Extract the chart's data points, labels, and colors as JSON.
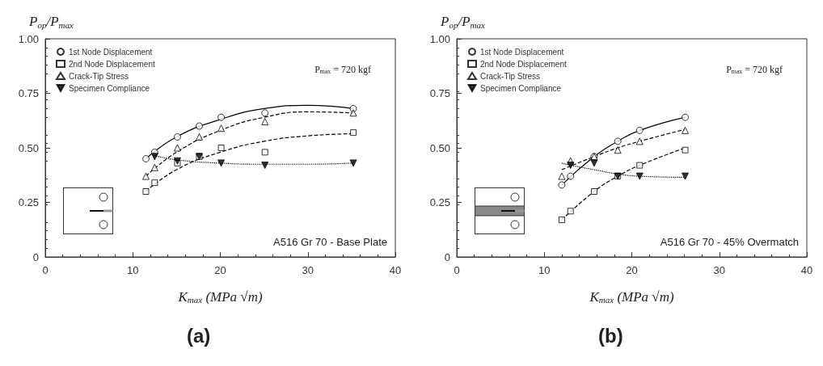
{
  "chart_data": [
    {
      "type": "scatter",
      "xlabel": "K$_{max}$ (MPa √m)",
      "ylabel": "P$_{op}$/P$_{max}$",
      "xlim": [
        0,
        40
      ],
      "xticks": [
        0,
        10,
        20,
        30,
        40
      ],
      "ylim": [
        0,
        1
      ],
      "yticks": [
        {
          "value": 0,
          "label": "0"
        },
        {
          "value": 0.25,
          "label": "0.25"
        },
        {
          "value": 0.5,
          "label": "0.50"
        },
        {
          "value": 0.75,
          "label": "0.75"
        },
        {
          "value": 1,
          "label": "1.00"
        }
      ],
      "legend": "top left",
      "grid": false,
      "annotations": [
        "P$_{max}$ = 720 kgf",
        "A516 Gr 70 - Base Plate",
        "(a)"
      ],
      "series": [
        {
          "name": "1st Node Displacement",
          "color": "#000000",
          "marker": "circle",
          "x": [
            11.5,
            12.5,
            15.1,
            17.6,
            20.1,
            25.1,
            35.2
          ],
          "values": [
            0.45,
            0.48,
            0.55,
            0.6,
            0.64,
            0.66,
            0.68
          ]
        },
        {
          "name": "2nd Node Displacement",
          "color": "#000000",
          "marker": "square",
          "x": [
            11.5,
            12.5,
            15.1,
            17.6,
            20.1,
            25.1,
            35.2
          ],
          "values": [
            0.3,
            0.34,
            0.43,
            0.46,
            0.5,
            0.48,
            0.57
          ]
        },
        {
          "name": "Crack-Tip Stress",
          "color": "#000000",
          "marker": "triangle",
          "x": [
            11.5,
            12.5,
            15.1,
            17.6,
            20.1,
            25.1,
            35.2
          ],
          "values": [
            0.37,
            0.41,
            0.5,
            0.55,
            0.59,
            0.62,
            0.66
          ]
        },
        {
          "name": "Specimen Compliance",
          "color": "#000000",
          "marker": "triangle-down",
          "x": [
            12.5,
            15.1,
            17.6,
            20.1,
            25.1,
            35.2
          ],
          "values": [
            0.46,
            0.44,
            0.46,
            0.43,
            0.42,
            0.43
          ]
        },
        {
          "type": "line",
          "color": "#000000",
          "marker": "none",
          "line_style": "solid",
          "x": [
            11.5,
            15,
            20,
            25,
            30,
            35.2
          ],
          "values": [
            0.45,
            0.55,
            0.63,
            0.68,
            0.695,
            0.68
          ]
        },
        {
          "type": "line",
          "color": "#000000",
          "marker": "none",
          "line_style": "dashed",
          "x": [
            11.5,
            15,
            20,
            25,
            30,
            35.2
          ],
          "values": [
            0.3,
            0.4,
            0.48,
            0.53,
            0.555,
            0.565
          ]
        },
        {
          "type": "line",
          "color": "#000000",
          "marker": "none",
          "line_style": "dashed",
          "x": [
            11.5,
            15,
            20,
            25,
            30,
            35.2
          ],
          "values": [
            0.37,
            0.48,
            0.58,
            0.64,
            0.665,
            0.66
          ]
        },
        {
          "type": "line",
          "color": "#000000",
          "marker": "none",
          "line_style": "dotted",
          "x": [
            12.5,
            15,
            20,
            25,
            30,
            35.2
          ],
          "values": [
            0.465,
            0.445,
            0.43,
            0.425,
            0.425,
            0.43
          ]
        }
      ]
    },
    {
      "type": "scatter",
      "xlabel": "K$_{max}$ (MPa √m)",
      "ylabel": "P$_{op}$/P$_{max}$",
      "xlim": [
        0,
        40
      ],
      "xticks": [
        0,
        10,
        20,
        30,
        40
      ],
      "ylim": [
        0,
        1
      ],
      "yticks": [
        {
          "value": 0,
          "label": "0"
        },
        {
          "value": 0.25,
          "label": "0.25"
        },
        {
          "value": 0.5,
          "label": "0.50"
        },
        {
          "value": 0.75,
          "label": "0.75"
        },
        {
          "value": 1,
          "label": "1.00"
        }
      ],
      "legend": "top left",
      "grid": false,
      "annotations": [
        "P$_{max}$ = 720 kgf",
        "A516 Gr 70 - 45% Overmatch",
        "(b)"
      ],
      "series": [
        {
          "name": "1st Node Displacement",
          "color": "#000000",
          "marker": "circle",
          "x": [
            12,
            13,
            15.7,
            18.4,
            20.9,
            26.1
          ],
          "values": [
            0.33,
            0.37,
            0.46,
            0.53,
            0.58,
            0.64
          ]
        },
        {
          "name": "2nd Node Displacement",
          "color": "#000000",
          "marker": "square",
          "x": [
            12,
            13,
            15.7,
            18.4,
            20.9,
            26.1
          ],
          "values": [
            0.17,
            0.21,
            0.3,
            0.37,
            0.42,
            0.49
          ]
        },
        {
          "name": "Crack-Tip Stress",
          "color": "#000000",
          "marker": "triangle",
          "x": [
            12,
            13,
            15.7,
            18.4,
            20.9,
            26.1
          ],
          "values": [
            0.37,
            0.44,
            0.46,
            0.49,
            0.53,
            0.58
          ]
        },
        {
          "name": "Specimen Compliance",
          "color": "#000000",
          "marker": "triangle-down",
          "x": [
            13,
            15.7,
            18.4,
            20.9,
            26.1
          ],
          "values": [
            0.42,
            0.43,
            0.37,
            0.37,
            0.37
          ]
        },
        {
          "type": "line",
          "color": "#000000",
          "marker": "none",
          "line_style": "solid",
          "x": [
            12,
            15.7,
            18.4,
            20.9,
            26.1
          ],
          "values": [
            0.33,
            0.46,
            0.53,
            0.58,
            0.64
          ]
        },
        {
          "type": "line",
          "color": "#000000",
          "marker": "none",
          "line_style": "dashed",
          "x": [
            12,
            15.7,
            18.4,
            20.9,
            26.1
          ],
          "values": [
            0.17,
            0.3,
            0.37,
            0.42,
            0.5
          ]
        },
        {
          "type": "line",
          "color": "#000000",
          "marker": "none",
          "line_style": "dashed",
          "x": [
            12,
            15.7,
            18.4,
            20.9,
            26.1
          ],
          "values": [
            0.4,
            0.46,
            0.5,
            0.53,
            0.585
          ]
        },
        {
          "type": "line",
          "color": "#000000",
          "marker": "none",
          "line_style": "dotted",
          "x": [
            12,
            13,
            15.7,
            18.4,
            20.9,
            26.1
          ],
          "values": [
            0.43,
            0.42,
            0.4,
            0.38,
            0.37,
            0.365
          ]
        }
      ]
    }
  ]
}
